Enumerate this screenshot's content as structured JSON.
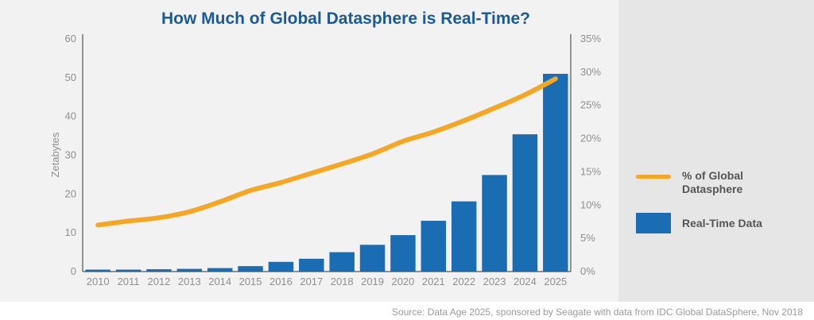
{
  "chart_data": {
    "type": "bar",
    "title": "How Much of Global Datasphere is Real-Time?",
    "ylabel": "Zetabytes",
    "ylim": [
      0,
      60
    ],
    "y_ticks": [
      "0",
      "10",
      "20",
      "30",
      "40",
      "50",
      "60"
    ],
    "y2lim": [
      0,
      35
    ],
    "y2_ticks": [
      "0%",
      "5%",
      "10%",
      "15%",
      "20%",
      "25%",
      "30%",
      "35%"
    ],
    "categories": [
      "2010",
      "2011",
      "2012",
      "2013",
      "2014",
      "2015",
      "2016",
      "2017",
      "2018",
      "2019",
      "2020",
      "2021",
      "2022",
      "2023",
      "2024",
      "2025"
    ],
    "series": [
      {
        "name": "Real-Time Data",
        "type": "bar",
        "axis": "left",
        "color": "#1a6db3",
        "values": [
          0.5,
          0.5,
          0.6,
          0.7,
          0.9,
          1.4,
          2.5,
          3.3,
          5.0,
          6.9,
          9.4,
          13.1,
          18.1,
          24.9,
          35.4,
          51.0
        ]
      },
      {
        "name": "% of Global Datasphere",
        "type": "line",
        "axis": "right",
        "color": "#f5a623",
        "values": [
          7.0,
          7.6,
          8.1,
          9.0,
          10.5,
          12.2,
          13.4,
          14.8,
          16.2,
          17.7,
          19.6,
          21.0,
          22.7,
          24.6,
          26.6,
          29.0
        ]
      }
    ],
    "legend_position": "right",
    "grid": false
  },
  "legend": {
    "line_label_1": "% of Global",
    "line_label_2": "Datasphere",
    "bar_label": "Real-Time Data"
  },
  "source": "Source: Data Age 2025, sponsored by Seagate with data from IDC Global DataSphere, Nov 2018"
}
